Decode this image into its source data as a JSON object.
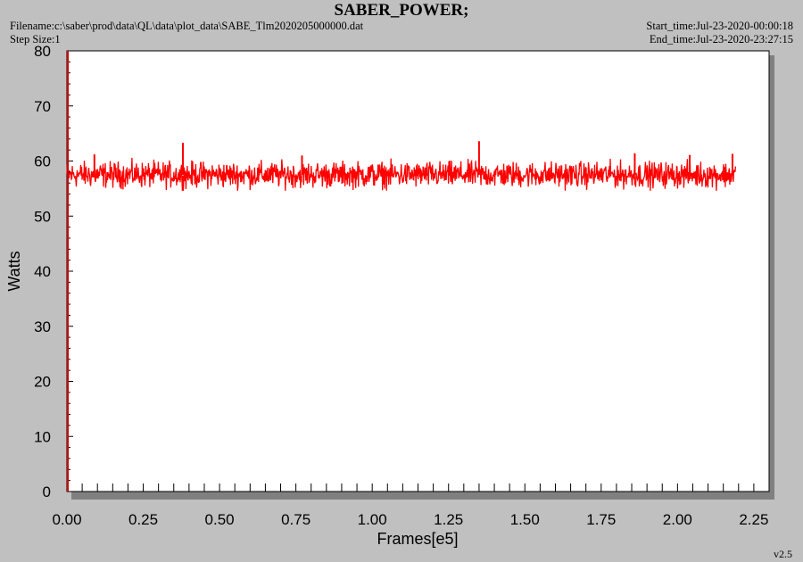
{
  "header": {
    "title": "SABER_POWER;",
    "filename": "Filename:c:\\saber\\prod\\data\\QL\\data\\plot_data\\SABE_Tlm2020205000000.dat",
    "step_size": "Step Size:1",
    "start_time": "Start_time:Jul-23-2020-00:00:18",
    "end_time": "End_time:Jul-23-2020-23:27:15"
  },
  "footer": {
    "version": "v2.5"
  },
  "colors": {
    "series": "#ff0000",
    "axis_red": "#d00000",
    "plot_bg": "#ffffff",
    "page_bg": "#c0c0c0"
  },
  "chart_data": {
    "type": "line",
    "title": "SABER_POWER;",
    "xlabel": "Frames[e5]",
    "ylabel": "Watts",
    "xlim": [
      0.0,
      2.3
    ],
    "ylim": [
      0,
      80
    ],
    "xticks": [
      "0.00",
      "0.25",
      "0.50",
      "0.75",
      "1.00",
      "1.25",
      "1.50",
      "1.75",
      "2.00",
      "2.25"
    ],
    "yticks": [
      "0",
      "10",
      "20",
      "30",
      "40",
      "50",
      "60",
      "70",
      "80"
    ],
    "grid": false,
    "legend": "none",
    "series": [
      {
        "x_range": [
          0.0,
          2.19
        ],
        "band_low": 55.0,
        "band_high": 60.3,
        "typical": 57.5,
        "spikes": [
          {
            "x": 0.38,
            "y": 63.3
          },
          {
            "x": 1.35,
            "y": 63.6
          },
          {
            "x": 0.09,
            "y": 61.2
          },
          {
            "x": 0.77,
            "y": 61.0
          },
          {
            "x": 1.86,
            "y": 61.4
          },
          {
            "x": 2.04,
            "y": 61.1
          },
          {
            "x": 2.18,
            "y": 61.3
          }
        ]
      }
    ]
  }
}
